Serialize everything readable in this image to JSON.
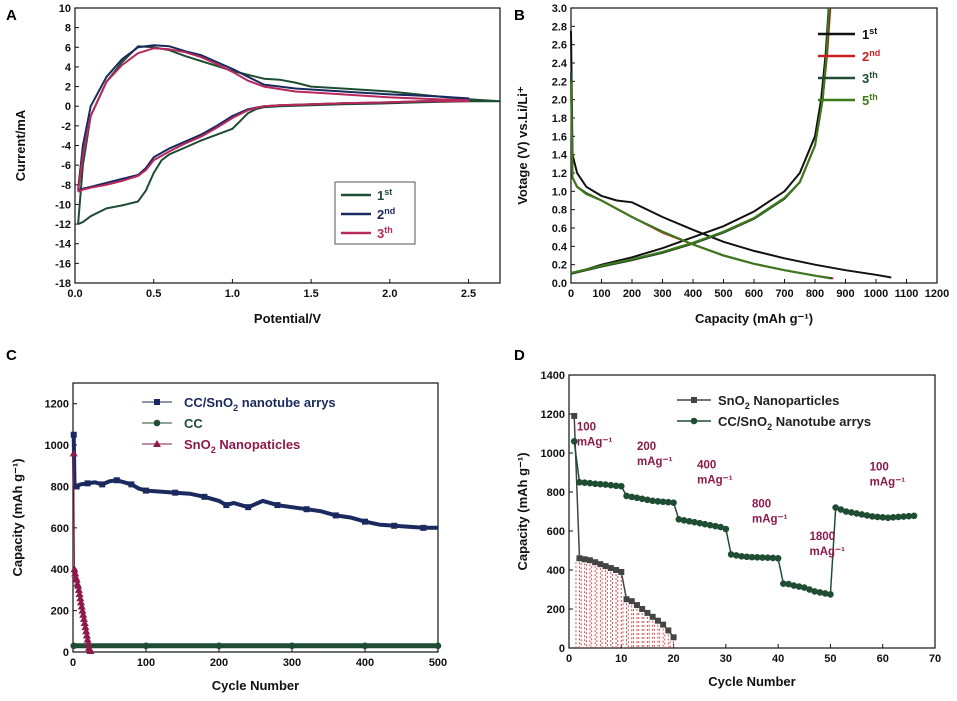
{
  "chart_data": [
    {
      "id": "A",
      "type": "line",
      "panel_label": "A",
      "xlabel": "Potential/V",
      "ylabel": "Current/mA",
      "xlim": [
        0,
        2.7
      ],
      "ylim": [
        -18,
        10
      ],
      "xticks": [
        0.0,
        0.5,
        1.0,
        1.5,
        2.0,
        2.5
      ],
      "yticks": [
        -18,
        -16,
        -14,
        -12,
        -10,
        -8,
        -6,
        -4,
        -2,
        0,
        2,
        4,
        6,
        8,
        10
      ],
      "legend_position": "bottom-right",
      "series": [
        {
          "name": "1st",
          "base": "1",
          "sup": "st",
          "color": "#1f4d33",
          "x": [
            0.02,
            0.05,
            0.1,
            0.2,
            0.3,
            0.4,
            0.5,
            0.6,
            0.7,
            0.8,
            0.9,
            1.0,
            1.1,
            1.2,
            1.3,
            1.4,
            1.5,
            1.7,
            2.0,
            2.3,
            2.5,
            2.7,
            2.5,
            2.2,
            2.0,
            1.7,
            1.5,
            1.3,
            1.2,
            1.15,
            1.1,
            1.05,
            1.0,
            0.9,
            0.8,
            0.7,
            0.6,
            0.55,
            0.5,
            0.45,
            0.4,
            0.3,
            0.2,
            0.1,
            0.05,
            0.02
          ],
          "y": [
            -12,
            -6,
            -1,
            2.5,
            4.5,
            6.1,
            6.0,
            5.7,
            5.1,
            4.6,
            4.1,
            3.6,
            3.2,
            2.8,
            2.7,
            2.4,
            2.0,
            1.8,
            1.5,
            1.0,
            0.7,
            0.5,
            0.5,
            0.4,
            0.3,
            0.2,
            0.1,
            0.0,
            -0.1,
            -0.3,
            -0.7,
            -1.5,
            -2.3,
            -2.9,
            -3.5,
            -4.2,
            -4.9,
            -5.5,
            -6.8,
            -8.6,
            -9.7,
            -10.1,
            -10.4,
            -11.2,
            -11.8,
            -12
          ]
        },
        {
          "name": "2nd",
          "base": "2",
          "sup": "nd",
          "color": "#1a2a5e",
          "x": [
            0.02,
            0.05,
            0.1,
            0.2,
            0.3,
            0.4,
            0.5,
            0.6,
            0.7,
            0.8,
            0.9,
            1.0,
            1.1,
            1.2,
            1.4,
            1.6,
            1.8,
            2.0,
            2.3,
            2.5,
            2.5,
            2.2,
            2.0,
            1.7,
            1.5,
            1.3,
            1.2,
            1.1,
            1.0,
            0.9,
            0.8,
            0.7,
            0.6,
            0.5,
            0.45,
            0.4,
            0.3,
            0.2,
            0.1,
            0.05,
            0.02
          ],
          "y": [
            -8.5,
            -4,
            0,
            3,
            4.8,
            6.0,
            6.2,
            6.1,
            5.6,
            5.2,
            4.5,
            3.8,
            3.0,
            2.2,
            1.8,
            1.6,
            1.4,
            1.2,
            1.0,
            0.8,
            0.6,
            0.5,
            0.4,
            0.3,
            0.2,
            0.1,
            0.0,
            -0.3,
            -1.0,
            -2.0,
            -2.9,
            -3.6,
            -4.3,
            -5.2,
            -6.3,
            -7.0,
            -7.4,
            -7.8,
            -8.2,
            -8.4,
            -8.5
          ]
        },
        {
          "name": "3th",
          "base": "3",
          "sup": "th",
          "color": "#b8285d",
          "x": [
            0.02,
            0.05,
            0.1,
            0.2,
            0.3,
            0.4,
            0.5,
            0.6,
            0.7,
            0.8,
            0.9,
            1.0,
            1.1,
            1.2,
            1.4,
            1.6,
            1.8,
            2.0,
            2.3,
            2.5,
            2.5,
            2.2,
            2.0,
            1.7,
            1.5,
            1.3,
            1.2,
            1.1,
            1.0,
            0.9,
            0.8,
            0.7,
            0.6,
            0.5,
            0.45,
            0.4,
            0.3,
            0.2,
            0.1,
            0.05,
            0.02
          ],
          "y": [
            -8.7,
            -5,
            -1,
            2.5,
            4.2,
            5.4,
            5.9,
            5.8,
            5.5,
            5.0,
            4.3,
            3.5,
            2.6,
            2.0,
            1.5,
            1.3,
            1.1,
            0.9,
            0.7,
            0.6,
            0.5,
            0.5,
            0.4,
            0.3,
            0.2,
            0.1,
            0.0,
            -0.4,
            -1.2,
            -2.2,
            -3.1,
            -3.8,
            -4.6,
            -5.5,
            -6.5,
            -7.1,
            -7.6,
            -8.0,
            -8.3,
            -8.5,
            -8.7
          ]
        }
      ]
    },
    {
      "id": "B",
      "type": "line",
      "panel_label": "B",
      "xlabel": "Capacity (mAh g⁻¹)",
      "ylabel": "Votage (V) vs.Li/Li⁺",
      "xlim": [
        0,
        1200
      ],
      "ylim": [
        0,
        3.0
      ],
      "xticks": [
        0,
        100,
        200,
        300,
        400,
        500,
        600,
        700,
        800,
        900,
        1000,
        1100,
        1200
      ],
      "yticks": [
        0.0,
        0.2,
        0.4,
        0.6,
        0.8,
        1.0,
        1.2,
        1.4,
        1.6,
        1.8,
        2.0,
        2.2,
        2.4,
        2.6,
        2.8,
        3.0
      ],
      "legend_position": "top-right",
      "series": [
        {
          "name": "1st",
          "base": "1",
          "sup": "st",
          "color": "#111111",
          "discharge_x": [
            0,
            5,
            20,
            50,
            100,
            150,
            200,
            300,
            400,
            500,
            600,
            700,
            800,
            900,
            1000,
            1050
          ],
          "discharge_y": [
            2.75,
            1.4,
            1.2,
            1.05,
            0.95,
            0.9,
            0.88,
            0.72,
            0.58,
            0.45,
            0.35,
            0.27,
            0.2,
            0.14,
            0.09,
            0.06
          ],
          "charge_x": [
            0,
            50,
            100,
            200,
            300,
            400,
            500,
            600,
            700,
            750,
            800,
            820,
            835,
            845
          ],
          "charge_y": [
            0.1,
            0.15,
            0.2,
            0.28,
            0.38,
            0.5,
            0.62,
            0.78,
            1.0,
            1.2,
            1.6,
            2.0,
            2.5,
            3.0
          ]
        },
        {
          "name": "2nd",
          "base": "2",
          "sup": "nd",
          "color": "#cc2020",
          "discharge_x": [
            0,
            5,
            20,
            50,
            100,
            200,
            300,
            400,
            500,
            600,
            700,
            800,
            860
          ],
          "discharge_y": [
            2.3,
            1.15,
            1.05,
            0.98,
            0.9,
            0.72,
            0.55,
            0.42,
            0.3,
            0.21,
            0.14,
            0.08,
            0.05
          ],
          "charge_x": [
            0,
            50,
            100,
            200,
            300,
            400,
            500,
            600,
            700,
            750,
            800,
            825,
            840,
            850
          ],
          "charge_y": [
            0.1,
            0.14,
            0.18,
            0.25,
            0.33,
            0.43,
            0.55,
            0.7,
            0.92,
            1.1,
            1.5,
            2.0,
            2.5,
            3.0
          ]
        },
        {
          "name": "3th",
          "base": "3",
          "sup": "th",
          "color": "#1f4d33",
          "discharge_x": [
            0,
            5,
            20,
            50,
            100,
            200,
            300,
            400,
            500,
            600,
            700,
            800,
            855
          ],
          "discharge_y": [
            2.3,
            1.15,
            1.05,
            0.98,
            0.9,
            0.72,
            0.56,
            0.42,
            0.3,
            0.21,
            0.14,
            0.08,
            0.05
          ],
          "charge_x": [
            0,
            50,
            100,
            200,
            300,
            400,
            500,
            600,
            700,
            750,
            800,
            825,
            838,
            848
          ],
          "charge_y": [
            0.1,
            0.14,
            0.18,
            0.25,
            0.33,
            0.43,
            0.55,
            0.7,
            0.92,
            1.1,
            1.5,
            2.0,
            2.5,
            3.0
          ]
        },
        {
          "name": "5th",
          "base": "5",
          "sup": "th",
          "color": "#3d7a1a",
          "discharge_x": [
            0,
            5,
            20,
            50,
            100,
            200,
            300,
            400,
            500,
            600,
            700,
            800,
            850
          ],
          "discharge_y": [
            2.2,
            1.15,
            1.05,
            0.97,
            0.9,
            0.72,
            0.56,
            0.42,
            0.3,
            0.21,
            0.14,
            0.08,
            0.05
          ],
          "charge_x": [
            0,
            50,
            100,
            200,
            300,
            400,
            500,
            600,
            700,
            750,
            800,
            825,
            838,
            846
          ],
          "charge_y": [
            0.11,
            0.15,
            0.19,
            0.26,
            0.34,
            0.44,
            0.56,
            0.71,
            0.93,
            1.1,
            1.5,
            2.0,
            2.5,
            3.0
          ]
        }
      ]
    },
    {
      "id": "C",
      "type": "scatter",
      "panel_label": "C",
      "xlabel": "Cycle Number",
      "ylabel": "Capacity (mAh g⁻¹)",
      "xlim": [
        0,
        500
      ],
      "ylim": [
        0,
        1300
      ],
      "xticks": [
        0,
        100,
        200,
        300,
        400,
        500
      ],
      "yticks": [
        0,
        200,
        400,
        600,
        800,
        1000,
        1200
      ],
      "legend_position": "top-center",
      "series": [
        {
          "name": "CC/SnO2 nanotube arrys",
          "base": "CC/SnO",
          "sub": "2",
          "after": " nanotube arrys",
          "color": "#1a2a5e",
          "marker": "square",
          "x": [
            1,
            2,
            5,
            10,
            20,
            30,
            40,
            50,
            60,
            70,
            80,
            90,
            100,
            120,
            140,
            160,
            180,
            200,
            210,
            220,
            240,
            260,
            280,
            300,
            320,
            340,
            360,
            380,
            400,
            420,
            440,
            460,
            480,
            500
          ],
          "y": [
            1050,
            810,
            800,
            810,
            815,
            820,
            810,
            825,
            830,
            820,
            810,
            790,
            780,
            775,
            770,
            765,
            750,
            730,
            710,
            720,
            700,
            730,
            710,
            700,
            690,
            680,
            660,
            650,
            630,
            615,
            610,
            605,
            600,
            600
          ]
        },
        {
          "name": "CC",
          "base": "CC",
          "color": "#1f4d33",
          "marker": "circle",
          "x": [
            1,
            50,
            100,
            150,
            200,
            250,
            300,
            350,
            400,
            450,
            500
          ],
          "y": [
            30,
            30,
            30,
            30,
            30,
            30,
            30,
            30,
            30,
            30,
            30
          ]
        },
        {
          "name": "SnO2 Nanopaticles",
          "base": "SnO",
          "sub": "2",
          "after": " Nanopaticles",
          "color": "#8c1a4a",
          "marker": "triangle",
          "x": [
            1,
            2,
            3,
            4,
            5,
            6,
            7,
            8,
            9,
            10,
            11,
            12,
            13,
            14,
            15,
            16,
            17,
            18,
            19,
            20,
            21,
            22,
            23,
            24
          ],
          "y": [
            960,
            400,
            380,
            360,
            350,
            330,
            320,
            300,
            280,
            260,
            240,
            220,
            200,
            180,
            160,
            140,
            120,
            100,
            80,
            60,
            40,
            20,
            10,
            5
          ]
        }
      ]
    },
    {
      "id": "D",
      "type": "scatter",
      "panel_label": "D",
      "xlabel": "Cycle Number",
      "ylabel": "Capacity (mAh g⁻¹)",
      "xlim": [
        0,
        70
      ],
      "ylim": [
        0,
        1400
      ],
      "xticks": [
        0,
        10,
        20,
        30,
        40,
        50,
        60,
        70
      ],
      "yticks": [
        0,
        200,
        400,
        600,
        800,
        1000,
        1200,
        1400
      ],
      "legend_position": "top-right",
      "rate_annotations": [
        {
          "rate": "100",
          "unit": "mAg⁻¹",
          "x": 1.5,
          "y": 1115
        },
        {
          "rate": "200",
          "unit": "mAg⁻¹",
          "x": 13,
          "y": 1015
        },
        {
          "rate": "400",
          "unit": "mAg⁻¹",
          "x": 24.5,
          "y": 920
        },
        {
          "rate": "800",
          "unit": "mAg⁻¹",
          "x": 35,
          "y": 720
        },
        {
          "rate": "1800",
          "unit": "mAg⁻¹",
          "x": 46,
          "y": 555
        },
        {
          "rate": "100",
          "unit": "mAg⁻¹",
          "x": 57.5,
          "y": 910
        }
      ],
      "series": [
        {
          "name": "SnO2 Nanoparticles",
          "base": "SnO",
          "sub": "2",
          "after": " Nanoparticles",
          "color": "#444444",
          "marker": "square",
          "x": [
            1,
            2,
            3,
            4,
            5,
            6,
            7,
            8,
            9,
            10,
            11,
            12,
            13,
            14,
            15,
            16,
            17,
            18,
            19,
            20
          ],
          "y": [
            1190,
            460,
            455,
            450,
            440,
            430,
            420,
            410,
            400,
            390,
            250,
            240,
            220,
            200,
            180,
            160,
            140,
            120,
            90,
            55
          ]
        },
        {
          "name": "CC/SnO2 Nanotube arrys",
          "base": "CC/SnO",
          "sub": "2",
          "after": " Nanotube arrys",
          "color": "#1f4d33",
          "marker": "circle",
          "x": [
            1,
            2,
            3,
            4,
            5,
            6,
            7,
            8,
            9,
            10,
            11,
            12,
            13,
            14,
            15,
            16,
            17,
            18,
            19,
            20,
            21,
            22,
            23,
            24,
            25,
            26,
            27,
            28,
            29,
            30,
            31,
            32,
            33,
            34,
            35,
            36,
            37,
            38,
            39,
            40,
            41,
            42,
            43,
            44,
            45,
            46,
            47,
            48,
            49,
            50,
            51,
            52,
            53,
            54,
            55,
            56,
            57,
            58,
            59,
            60,
            61,
            62,
            63,
            64,
            65,
            66
          ],
          "y": [
            1060,
            850,
            848,
            845,
            842,
            840,
            838,
            835,
            832,
            830,
            780,
            775,
            770,
            765,
            760,
            755,
            752,
            750,
            748,
            745,
            660,
            655,
            650,
            645,
            640,
            635,
            630,
            625,
            620,
            610,
            480,
            475,
            470,
            468,
            466,
            465,
            464,
            463,
            462,
            460,
            330,
            328,
            320,
            315,
            310,
            300,
            290,
            285,
            280,
            275,
            720,
            710,
            700,
            695,
            690,
            685,
            680,
            675,
            672,
            670,
            668,
            670,
            672,
            674,
            676,
            678
          ]
        }
      ]
    }
  ]
}
